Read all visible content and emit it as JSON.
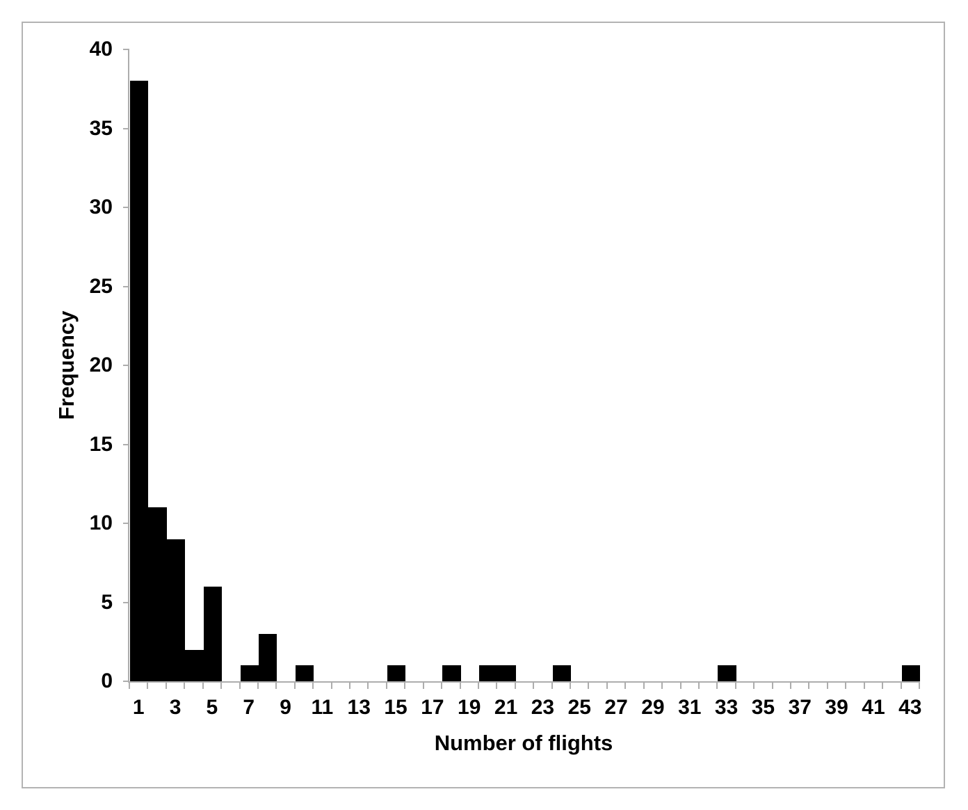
{
  "figure": {
    "background": "#ffffff",
    "border_color": "#b3b3b3"
  },
  "chart_data": {
    "type": "bar",
    "title": "",
    "xlabel": "Number of flights",
    "ylabel": "Frequency",
    "categories": [
      1,
      2,
      3,
      4,
      5,
      6,
      7,
      8,
      9,
      10,
      11,
      12,
      13,
      14,
      15,
      16,
      17,
      18,
      19,
      20,
      21,
      22,
      23,
      24,
      25,
      26,
      27,
      28,
      29,
      30,
      31,
      32,
      33,
      34,
      35,
      36,
      37,
      38,
      39,
      40,
      41,
      42,
      43
    ],
    "values": [
      38,
      11,
      9,
      2,
      6,
      0,
      1,
      3,
      0,
      1,
      0,
      0,
      0,
      0,
      1,
      0,
      0,
      1,
      0,
      1,
      1,
      0,
      0,
      1,
      0,
      0,
      0,
      0,
      0,
      0,
      0,
      0,
      1,
      0,
      0,
      0,
      0,
      0,
      0,
      0,
      0,
      0,
      1
    ],
    "ylim": [
      0,
      40
    ],
    "yticks": [
      0,
      5,
      10,
      15,
      20,
      25,
      30,
      35,
      40
    ],
    "xtick_labels": [
      1,
      3,
      5,
      7,
      9,
      11,
      13,
      15,
      17,
      19,
      21,
      23,
      25,
      27,
      29,
      31,
      33,
      35,
      37,
      39,
      41,
      43
    ],
    "bar_color": "#000000",
    "axis_color": "#adadad",
    "label_color": "#000000",
    "grid": false,
    "legend": null,
    "bar_gap": 0
  }
}
